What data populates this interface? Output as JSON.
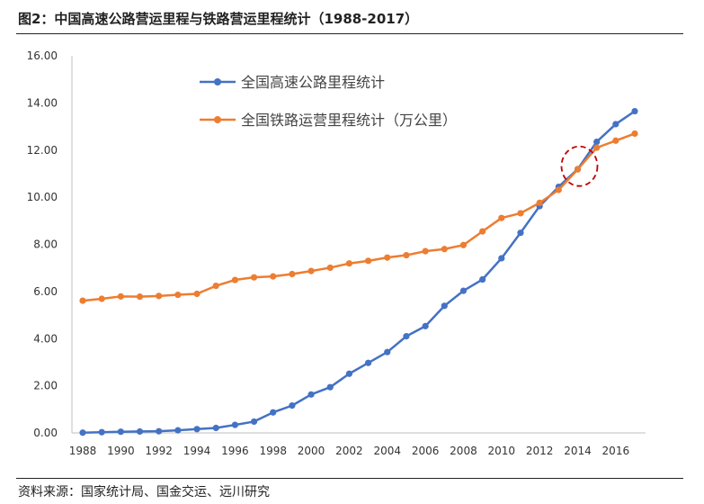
{
  "header": {
    "title": "图2：中国高速公路营运里程与铁路营运里程统计（1988-2017）"
  },
  "footer": {
    "source": "资料来源：国家统计局、国金交运、远川研究"
  },
  "colors": {
    "highway": "#4472C4",
    "railway": "#ED7D31",
    "highlight": "#C00000",
    "axis": "#bfbfbf"
  },
  "chart_data": {
    "type": "line",
    "title": "",
    "xlabel": "",
    "ylabel": "",
    "ylim": [
      0,
      16
    ],
    "xlim": [
      1988,
      2017
    ],
    "grid": false,
    "legend_position": "top-left",
    "y_ticks": [
      "0.00",
      "2.00",
      "4.00",
      "6.00",
      "8.00",
      "10.00",
      "12.00",
      "14.00",
      "16.00"
    ],
    "x_ticks": [
      "1988",
      "1990",
      "1992",
      "1994",
      "1996",
      "1998",
      "2000",
      "2002",
      "2004",
      "2006",
      "2008",
      "2010",
      "2012",
      "2014",
      "2016"
    ],
    "x": [
      1988,
      1989,
      1990,
      1991,
      1992,
      1993,
      1994,
      1995,
      1996,
      1997,
      1998,
      1999,
      2000,
      2001,
      2002,
      2003,
      2004,
      2005,
      2006,
      2007,
      2008,
      2009,
      2010,
      2011,
      2012,
      2013,
      2014,
      2015,
      2016,
      2017
    ],
    "series": [
      {
        "name": "全国高速公路里程统计",
        "values": [
          0.01,
          0.03,
          0.05,
          0.06,
          0.07,
          0.11,
          0.16,
          0.21,
          0.34,
          0.48,
          0.87,
          1.16,
          1.63,
          1.94,
          2.51,
          2.97,
          3.43,
          4.1,
          4.53,
          5.39,
          6.03,
          6.51,
          7.41,
          8.49,
          9.62,
          10.44,
          11.19,
          12.35,
          13.1,
          13.65
        ]
      },
      {
        "name": "全国铁路运营里程统计（万公里）",
        "values": [
          5.61,
          5.69,
          5.79,
          5.78,
          5.81,
          5.86,
          5.9,
          6.24,
          6.49,
          6.6,
          6.64,
          6.74,
          6.87,
          7.01,
          7.19,
          7.3,
          7.44,
          7.54,
          7.71,
          7.8,
          7.97,
          8.55,
          9.12,
          9.32,
          9.76,
          10.31,
          11.18,
          12.1,
          12.4,
          12.7
        ]
      }
    ],
    "annotation": {
      "type": "dashed-circle",
      "x": 2014,
      "y": 11.2,
      "label": ""
    }
  }
}
